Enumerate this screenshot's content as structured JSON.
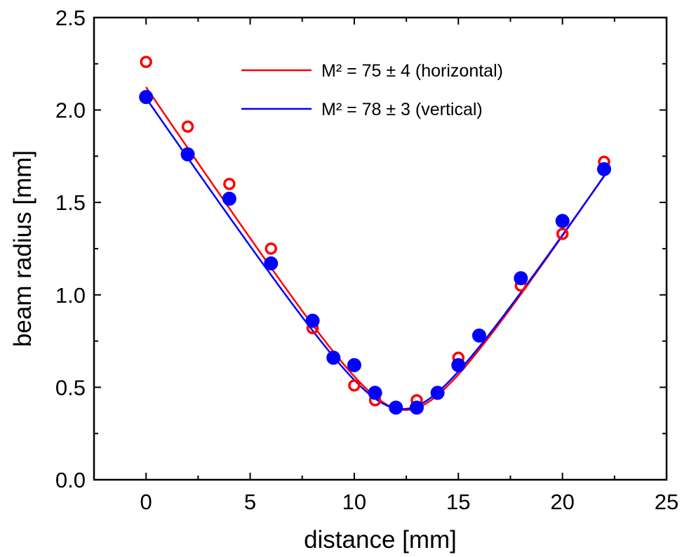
{
  "chart_data": {
    "type": "scatter",
    "title": "",
    "xlabel": "distance [mm]",
    "ylabel": "beam radius [mm]",
    "xlim": [
      -2.5,
      25
    ],
    "ylim": [
      0,
      2.5
    ],
    "x_ticks": [
      "0",
      "5",
      "10",
      "15",
      "20",
      "25"
    ],
    "y_ticks": [
      "0.0",
      "0.5",
      "1.0",
      "1.5",
      "2.0",
      "2.5"
    ],
    "grid": false,
    "legend_position": "top-right",
    "series": [
      {
        "name": "horizontal",
        "marker": "open-circle",
        "color": "#ff0000",
        "points": [
          {
            "x": 0,
            "y": 2.26
          },
          {
            "x": 2,
            "y": 1.91
          },
          {
            "x": 4,
            "y": 1.6
          },
          {
            "x": 6,
            "y": 1.25
          },
          {
            "x": 8,
            "y": 0.82
          },
          {
            "x": 9,
            "y": 0.66
          },
          {
            "x": 10,
            "y": 0.51
          },
          {
            "x": 11,
            "y": 0.43
          },
          {
            "x": 12,
            "y": 0.39
          },
          {
            "x": 13,
            "y": 0.43
          },
          {
            "x": 14,
            "y": 0.47
          },
          {
            "x": 15,
            "y": 0.66
          },
          {
            "x": 16,
            "y": 0.78
          },
          {
            "x": 18,
            "y": 1.05
          },
          {
            "x": 20,
            "y": 1.33
          },
          {
            "x": 22,
            "y": 1.72
          }
        ],
        "fit": {
          "label": "M² = 75 ± 4 (horizontal)",
          "w0": 0.3774,
          "z0": 12.46,
          "zr": 2.25,
          "x_range": [
            0,
            22
          ]
        }
      },
      {
        "name": "vertical",
        "marker": "filled-circle",
        "color": "#0000ff",
        "points": [
          {
            "x": 0,
            "y": 2.07
          },
          {
            "x": 2,
            "y": 1.76
          },
          {
            "x": 4,
            "y": 1.52
          },
          {
            "x": 6,
            "y": 1.17
          },
          {
            "x": 8,
            "y": 0.86
          },
          {
            "x": 9,
            "y": 0.66
          },
          {
            "x": 10,
            "y": 0.62
          },
          {
            "x": 11,
            "y": 0.47
          },
          {
            "x": 12,
            "y": 0.39
          },
          {
            "x": 13,
            "y": 0.39
          },
          {
            "x": 14,
            "y": 0.47
          },
          {
            "x": 15,
            "y": 0.62
          },
          {
            "x": 16,
            "y": 0.78
          },
          {
            "x": 18,
            "y": 1.09
          },
          {
            "x": 20,
            "y": 1.4
          },
          {
            "x": 22,
            "y": 1.68
          }
        ],
        "fit": {
          "label": "M² = 78 ± 3 (vertical)",
          "w0": 0.3823,
          "z0": 12.31,
          "zr": 2.32,
          "x_range": [
            0,
            22
          ]
        }
      }
    ],
    "colors": {
      "horizontal": "#ff0000",
      "vertical": "#0000ff",
      "axis": "#000000"
    }
  }
}
